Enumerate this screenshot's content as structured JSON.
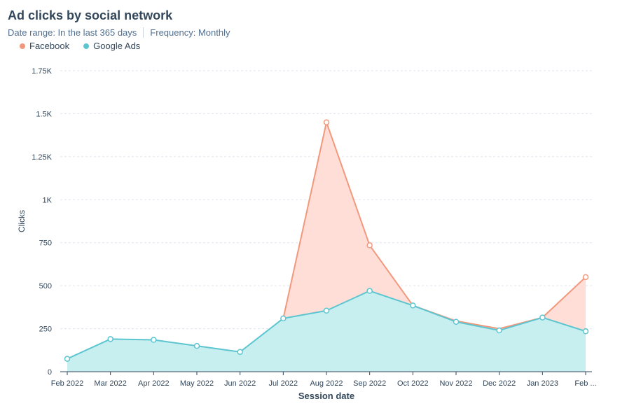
{
  "title": "Ad clicks by social network",
  "filters": {
    "date_range": "Date range: In the last 365 days",
    "frequency": "Frequency: Monthly"
  },
  "colors": {
    "facebook_line": "#f2987d",
    "facebook_fill": "#ffded7",
    "google_line": "#5cc5cf",
    "google_fill": "#c8eff0",
    "grid": "#dfe3eb",
    "axis_text": "#33475b"
  },
  "chart_data": {
    "type": "area",
    "stacked": false,
    "xlabel": "Session date",
    "ylabel": "Clicks",
    "ylim": [
      0,
      1750
    ],
    "y_ticks": [
      {
        "value": 0,
        "label": "0"
      },
      {
        "value": 250,
        "label": "250"
      },
      {
        "value": 500,
        "label": "500"
      },
      {
        "value": 750,
        "label": "750"
      },
      {
        "value": 1000,
        "label": "1K"
      },
      {
        "value": 1250,
        "label": "1.25K"
      },
      {
        "value": 1500,
        "label": "1.5K"
      },
      {
        "value": 1750,
        "label": "1.75K"
      }
    ],
    "categories": [
      "Feb 2022",
      "Mar 2022",
      "Apr 2022",
      "May 2022",
      "Jun 2022",
      "Jul 2022",
      "Aug 2022",
      "Sep 2022",
      "Oct 2022",
      "Nov 2022",
      "Dec 2022",
      "Jan 2023",
      "Feb ..."
    ],
    "legend_position": "top-left",
    "grid": true,
    "series": [
      {
        "name": "Facebook",
        "values": [
          null,
          null,
          null,
          null,
          null,
          310,
          1450,
          735,
          null,
          295,
          250,
          315,
          550
        ],
        "marker_indices": [
          6,
          7,
          12
        ]
      },
      {
        "name": "Google Ads",
        "values": [
          75,
          190,
          185,
          150,
          115,
          310,
          355,
          470,
          385,
          290,
          240,
          315,
          235
        ],
        "marker_indices": [
          0,
          1,
          2,
          3,
          4,
          5,
          6,
          7,
          8,
          9,
          10,
          11,
          12
        ]
      }
    ]
  }
}
